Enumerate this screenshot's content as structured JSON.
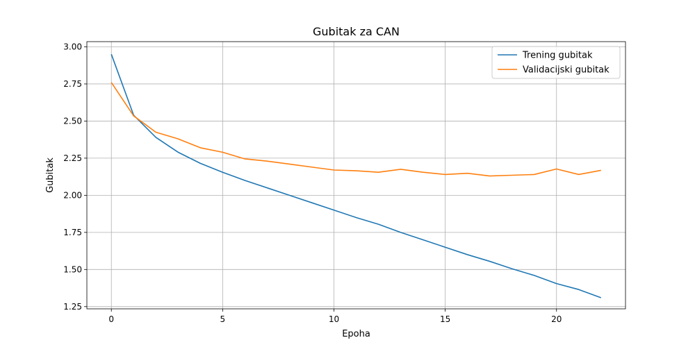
{
  "chart_data": {
    "type": "line",
    "title": "Gubitak za CAN",
    "xlabel": "Epoha",
    "ylabel": "Gubitak",
    "xlim": [
      -1.1,
      23.1
    ],
    "ylim": [
      1.235,
      3.035
    ],
    "xticks": [
      0,
      5,
      10,
      15,
      20
    ],
    "xtick_labels": [
      "0",
      "5",
      "10",
      "15",
      "20"
    ],
    "yticks": [
      1.25,
      1.5,
      1.75,
      2.0,
      2.25,
      2.5,
      2.75,
      3.0
    ],
    "ytick_labels": [
      "1.25",
      "1.50",
      "1.75",
      "2.00",
      "2.25",
      "2.50",
      "2.75",
      "3.00"
    ],
    "grid": true,
    "legend_position": "top-right",
    "x": [
      0,
      1,
      2,
      3,
      4,
      5,
      6,
      7,
      8,
      9,
      10,
      11,
      12,
      13,
      14,
      15,
      16,
      17,
      18,
      19,
      20,
      21,
      22
    ],
    "series": [
      {
        "name": "Trening gubitak",
        "color": "#1f77b4",
        "values": [
          2.95,
          2.54,
          2.39,
          2.29,
          2.215,
          2.155,
          2.1,
          2.05,
          2.0,
          1.95,
          1.9,
          1.85,
          1.805,
          1.75,
          1.7,
          1.65,
          1.6,
          1.555,
          1.505,
          1.46,
          1.405,
          1.365,
          1.31
        ]
      },
      {
        "name": "Validacijski gubitak",
        "color": "#ff7f0e",
        "values": [
          2.76,
          2.535,
          2.425,
          2.38,
          2.32,
          2.29,
          2.245,
          2.23,
          2.21,
          2.19,
          2.17,
          2.165,
          2.155,
          2.175,
          2.155,
          2.14,
          2.148,
          2.13,
          2.135,
          2.14,
          2.177,
          2.14,
          2.168
        ]
      }
    ]
  }
}
